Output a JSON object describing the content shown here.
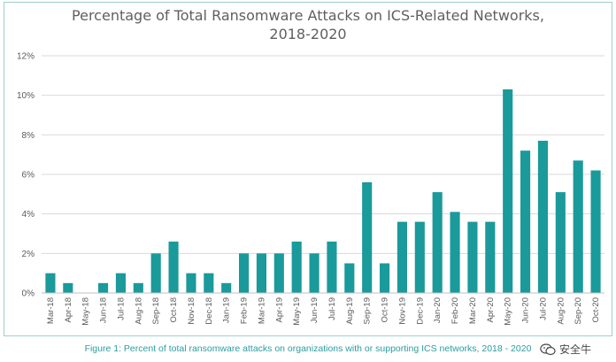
{
  "chart_data": {
    "type": "bar",
    "title": "Percentage of Total Ransomware Attacks on ICS-Related Networks, 2018-2020",
    "title_lines": [
      "Percentage  of  Total  Ransomware  Attacks  on  ICS-Related  Networks,",
      "2018-2020"
    ],
    "xlabel": "",
    "ylabel": "",
    "ylim": [
      0,
      12
    ],
    "yticks": [
      0,
      2,
      4,
      6,
      8,
      10,
      12
    ],
    "ytick_labels": [
      "0%",
      "2%",
      "4%",
      "6%",
      "8%",
      "10%",
      "12%"
    ],
    "grid": true,
    "bar_color": "#1a9a9a",
    "categories": [
      "Mar-18",
      "Apr-18",
      "May-18",
      "Jun-18",
      "Jul-18",
      "Aug-18",
      "Sep-18",
      "Oct-18",
      "Nov-18",
      "Dec-18",
      "Jan-19",
      "Feb-19",
      "Mar-19",
      "Apr-19",
      "May-19",
      "Jun-19",
      "Jul-19",
      "Aug-19",
      "Sep-19",
      "Oct-19",
      "Nov-19",
      "Dec-19",
      "Jan-20",
      "Feb-20",
      "Mar-20",
      "Apr-20",
      "May-20",
      "Jun-20",
      "Jul-20",
      "Aug-20",
      "Sep-20",
      "Oct-20"
    ],
    "values": [
      1.0,
      0.5,
      0.0,
      0.5,
      1.0,
      0.5,
      2.0,
      2.6,
      1.0,
      1.0,
      0.5,
      2.0,
      2.0,
      2.0,
      2.6,
      2.0,
      2.6,
      1.5,
      5.6,
      1.5,
      3.6,
      3.6,
      5.1,
      4.1,
      3.6,
      3.6,
      10.3,
      7.2,
      7.7,
      5.1,
      6.7,
      6.2
    ]
  },
  "caption": "Figure 1: Percent of total ransomware attacks on organizations with or supporting ICS networks, 2018 - 2020",
  "watermark": {
    "text": "安全牛",
    "icon": "wechat-icon"
  }
}
